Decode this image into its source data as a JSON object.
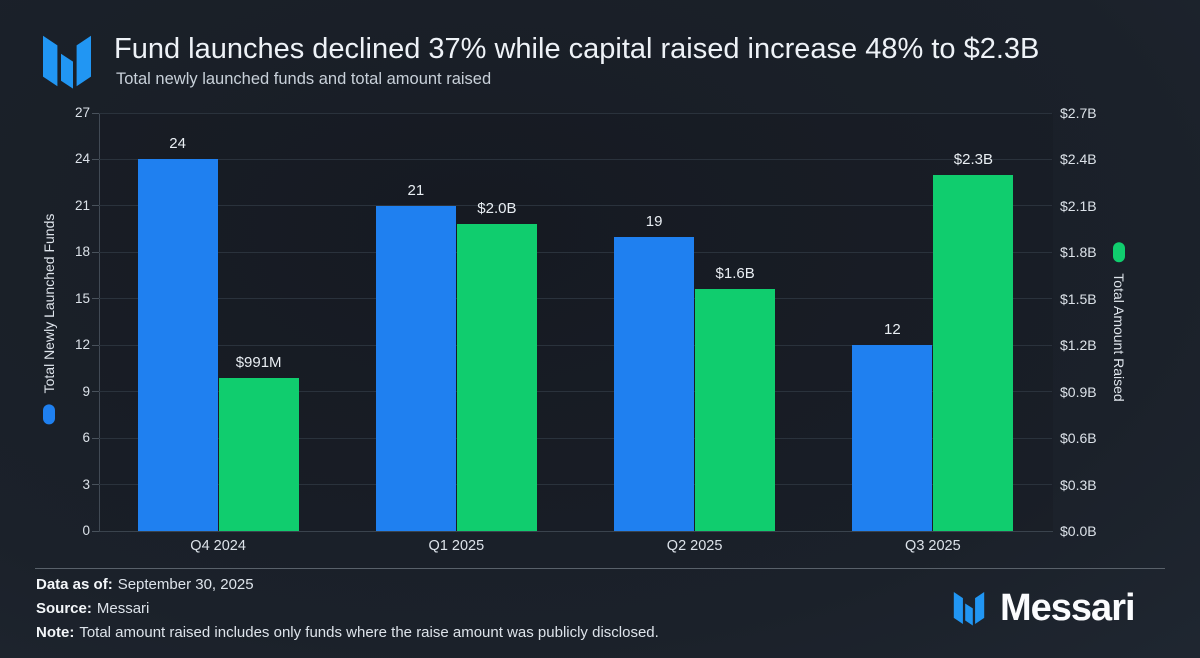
{
  "header": {
    "title": "Fund launches declined 37% while capital raised increase 48% to $2.3B",
    "subtitle": "Total newly launched funds and total amount raised",
    "logo_icon": "messari-logo-icon"
  },
  "chart_data": {
    "type": "bar",
    "title": "Fund launches declined 37% while capital raised increase 48% to $2.3B",
    "subtitle": "Total newly launched funds and total amount raised",
    "categories": [
      "Q4 2024",
      "Q1 2025",
      "Q2 2025",
      "Q3 2025"
    ],
    "series": [
      {
        "name": "Total Newly Launched Funds",
        "axis": "left",
        "color": "#1f80f0",
        "values": [
          24,
          21,
          19,
          12
        ],
        "value_labels": [
          "24",
          "21",
          "19",
          "12"
        ]
      },
      {
        "name": "Total Amount Raised",
        "axis": "right",
        "color": "#10cd6e",
        "values": [
          0.991,
          1.98,
          1.56,
          2.3
        ],
        "value_labels": [
          "$991M",
          "$2.0B",
          "$1.6B",
          "$2.3B"
        ]
      }
    ],
    "left_axis": {
      "title": "Total Newly Launched Funds",
      "min": 0,
      "max": 27,
      "ticks": [
        0,
        3,
        6,
        9,
        12,
        15,
        18,
        21,
        24,
        27
      ]
    },
    "right_axis": {
      "title": "Total Amount Raised",
      "min": 0,
      "max": 2.7,
      "tick_labels": [
        "$0.0B",
        "$0.3B",
        "$0.6B",
        "$0.9B",
        "$1.2B",
        "$1.5B",
        "$1.8B",
        "$2.1B",
        "$2.4B",
        "$2.7B"
      ]
    },
    "grid": true,
    "legend_position": "axis-titles"
  },
  "footer": {
    "rows": [
      {
        "label": "Data as of:",
        "value": "September 30, 2025"
      },
      {
        "label": "Source:",
        "value": "Messari"
      },
      {
        "label": "Note:",
        "value": "Total amount raised includes only funds where the raise amount was publicly disclosed."
      }
    ],
    "brand": "Messari",
    "brand_icon": "messari-logo-icon"
  },
  "colors": {
    "launches_blue": "#1f80f0",
    "raised_green": "#10cd6e",
    "background": "#1b212a",
    "gridline": "#2a323c"
  }
}
